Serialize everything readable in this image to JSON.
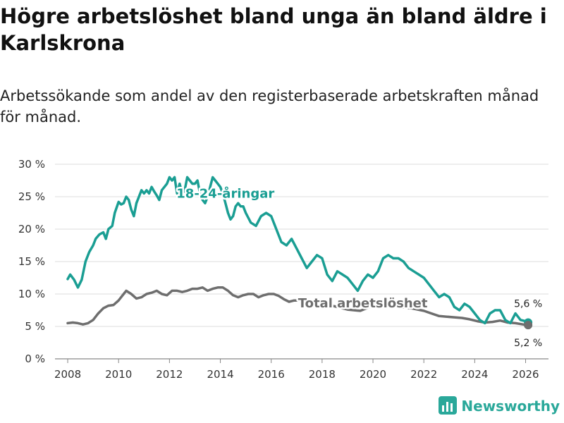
{
  "title": "Högre arbetslöshet bland unga än bland äldre i Karlskrona",
  "subtitle": "Arbetssökande som andel av den registerbaserade arbetskraften månad för månad.",
  "logo": {
    "text": "Newsworthy",
    "icon": "bar-chart-icon",
    "color": "#2aa89a"
  },
  "chart_data": {
    "type": "line",
    "title": "Högre arbetslöshet bland unga än bland äldre i Karlskrona",
    "xlabel": "",
    "ylabel": "",
    "xlim": [
      2007.5,
      2026.9
    ],
    "ylim": [
      0,
      30
    ],
    "grid": true,
    "yticks": [
      0,
      5,
      10,
      15,
      20,
      25,
      30
    ],
    "ytick_labels": [
      "0 %",
      "5 %",
      "10 %",
      "15 %",
      "20 %",
      "25 %",
      "30 %"
    ],
    "xticks": [
      2008,
      2010,
      2012,
      2014,
      2016,
      2018,
      2020,
      2022,
      2024,
      2026
    ],
    "xtick_labels": [
      "2008",
      "2010",
      "2012",
      "2014",
      "2016",
      "2018",
      "2020",
      "2022",
      "2024",
      "2026"
    ],
    "series": [
      {
        "name": "18-24-åringar",
        "label": "18-24-åringar",
        "color": "#1a9e93",
        "end_label": "5,6 %",
        "x": [
          2008.0,
          2008.1,
          2008.25,
          2008.4,
          2008.55,
          2008.7,
          2008.85,
          2009.0,
          2009.1,
          2009.25,
          2009.4,
          2009.5,
          2009.6,
          2009.75,
          2009.85,
          2010.0,
          2010.1,
          2010.2,
          2010.3,
          2010.4,
          2010.5,
          2010.6,
          2010.7,
          2010.8,
          2010.9,
          2011.0,
          2011.1,
          2011.2,
          2011.3,
          2011.4,
          2011.5,
          2011.6,
          2011.7,
          2011.8,
          2011.9,
          2012.0,
          2012.1,
          2012.2,
          2012.3,
          2012.4,
          2012.5,
          2012.6,
          2012.7,
          2012.8,
          2012.9,
          2013.0,
          2013.1,
          2013.2,
          2013.3,
          2013.4,
          2013.5,
          2013.6,
          2013.7,
          2013.8,
          2013.9,
          2014.0,
          2014.1,
          2014.2,
          2014.3,
          2014.4,
          2014.5,
          2014.6,
          2014.7,
          2014.8,
          2014.9,
          2015.0,
          2015.2,
          2015.4,
          2015.6,
          2015.8,
          2016.0,
          2016.2,
          2016.4,
          2016.6,
          2016.8,
          2017.0,
          2017.2,
          2017.4,
          2017.6,
          2017.8,
          2018.0,
          2018.2,
          2018.4,
          2018.6,
          2018.8,
          2019.0,
          2019.2,
          2019.4,
          2019.6,
          2019.8,
          2020.0,
          2020.2,
          2020.4,
          2020.6,
          2020.8,
          2021.0,
          2021.2,
          2021.4,
          2021.6,
          2021.8,
          2022.0,
          2022.2,
          2022.4,
          2022.6,
          2022.8,
          2023.0,
          2023.2,
          2023.4,
          2023.6,
          2023.8,
          2024.0,
          2024.2,
          2024.4,
          2024.6,
          2024.8,
          2025.0,
          2025.2,
          2025.4,
          2025.6,
          2025.8,
          2026.0,
          2026.1
        ],
        "y": [
          12.3,
          13.0,
          12.2,
          11.0,
          12.2,
          15.0,
          16.5,
          17.5,
          18.5,
          19.2,
          19.5,
          18.5,
          20.0,
          20.5,
          22.5,
          24.2,
          23.8,
          24.0,
          25.0,
          24.5,
          23.0,
          22.0,
          24.0,
          25.0,
          26.0,
          25.5,
          26.0,
          25.5,
          26.5,
          25.8,
          25.2,
          24.5,
          26.0,
          26.5,
          27.0,
          28.0,
          27.5,
          28.0,
          25.5,
          27.0,
          25.5,
          26.0,
          28.0,
          27.5,
          27.0,
          27.0,
          27.5,
          25.5,
          24.5,
          24.0,
          25.0,
          26.5,
          28.0,
          27.5,
          27.0,
          26.5,
          25.5,
          24.0,
          22.5,
          21.5,
          22.0,
          23.5,
          24.0,
          23.5,
          23.5,
          22.5,
          21.0,
          20.5,
          22.0,
          22.5,
          22.0,
          20.0,
          18.0,
          17.5,
          18.5,
          17.0,
          15.5,
          14.0,
          15.0,
          16.0,
          15.5,
          13.0,
          12.0,
          13.5,
          13.0,
          12.5,
          11.5,
          10.5,
          12.0,
          13.0,
          12.5,
          13.5,
          15.5,
          16.0,
          15.5,
          15.5,
          15.0,
          14.0,
          13.5,
          13.0,
          12.5,
          11.5,
          10.5,
          9.5,
          10.0,
          9.5,
          8.0,
          7.5,
          8.5,
          8.0,
          7.0,
          6.0,
          5.5,
          7.0,
          7.5,
          7.5,
          6.0,
          5.5,
          7.0,
          6.0,
          5.8,
          5.6
        ]
      },
      {
        "name": "Total arbetslöshet",
        "label": "Total arbetslöshet",
        "color": "#6e6e6e",
        "end_label": "5,2 %",
        "x": [
          2008.0,
          2008.2,
          2008.4,
          2008.6,
          2008.8,
          2009.0,
          2009.2,
          2009.4,
          2009.6,
          2009.8,
          2010.0,
          2010.1,
          2010.2,
          2010.3,
          2010.5,
          2010.7,
          2010.9,
          2011.1,
          2011.3,
          2011.5,
          2011.7,
          2011.9,
          2012.1,
          2012.3,
          2012.5,
          2012.7,
          2012.9,
          2013.1,
          2013.3,
          2013.5,
          2013.7,
          2013.9,
          2014.1,
          2014.3,
          2014.5,
          2014.7,
          2014.9,
          2015.1,
          2015.3,
          2015.5,
          2015.7,
          2015.9,
          2016.1,
          2016.3,
          2016.5,
          2016.7,
          2016.9,
          2017.1,
          2017.3,
          2017.6,
          2018.0,
          2018.5,
          2019.0,
          2019.5,
          2020.0,
          2020.5,
          2021.0,
          2021.5,
          2022.0,
          2022.3,
          2022.6,
          2022.9,
          2023.2,
          2023.5,
          2023.8,
          2024.1,
          2024.4,
          2024.7,
          2025.0,
          2025.3,
          2025.6,
          2025.9,
          2026.1
        ],
        "y": [
          5.5,
          5.6,
          5.5,
          5.3,
          5.5,
          6.0,
          7.0,
          7.8,
          8.2,
          8.3,
          9.0,
          9.5,
          10.0,
          10.5,
          10.0,
          9.3,
          9.5,
          10.0,
          10.2,
          10.5,
          10.0,
          9.8,
          10.5,
          10.5,
          10.3,
          10.5,
          10.8,
          10.8,
          11.0,
          10.5,
          10.8,
          11.0,
          11.0,
          10.5,
          9.8,
          9.5,
          9.8,
          10.0,
          10.0,
          9.5,
          9.8,
          10.0,
          10.0,
          9.7,
          9.2,
          8.8,
          9.0,
          9.0,
          8.8,
          8.6,
          8.4,
          8.1,
          7.6,
          7.4,
          8.2,
          8.8,
          8.0,
          7.8,
          7.4,
          7.0,
          6.6,
          6.5,
          6.4,
          6.3,
          6.1,
          5.8,
          5.6,
          5.7,
          5.9,
          5.6,
          5.5,
          5.3,
          5.2
        ]
      }
    ],
    "annotations": [
      {
        "text": "18-24-åringar",
        "series": 0,
        "x": 2014.2,
        "y": 25.5
      },
      {
        "text": "Total arbetslöshet",
        "series": 1,
        "x": 2019.6,
        "y": 8.6
      }
    ]
  }
}
